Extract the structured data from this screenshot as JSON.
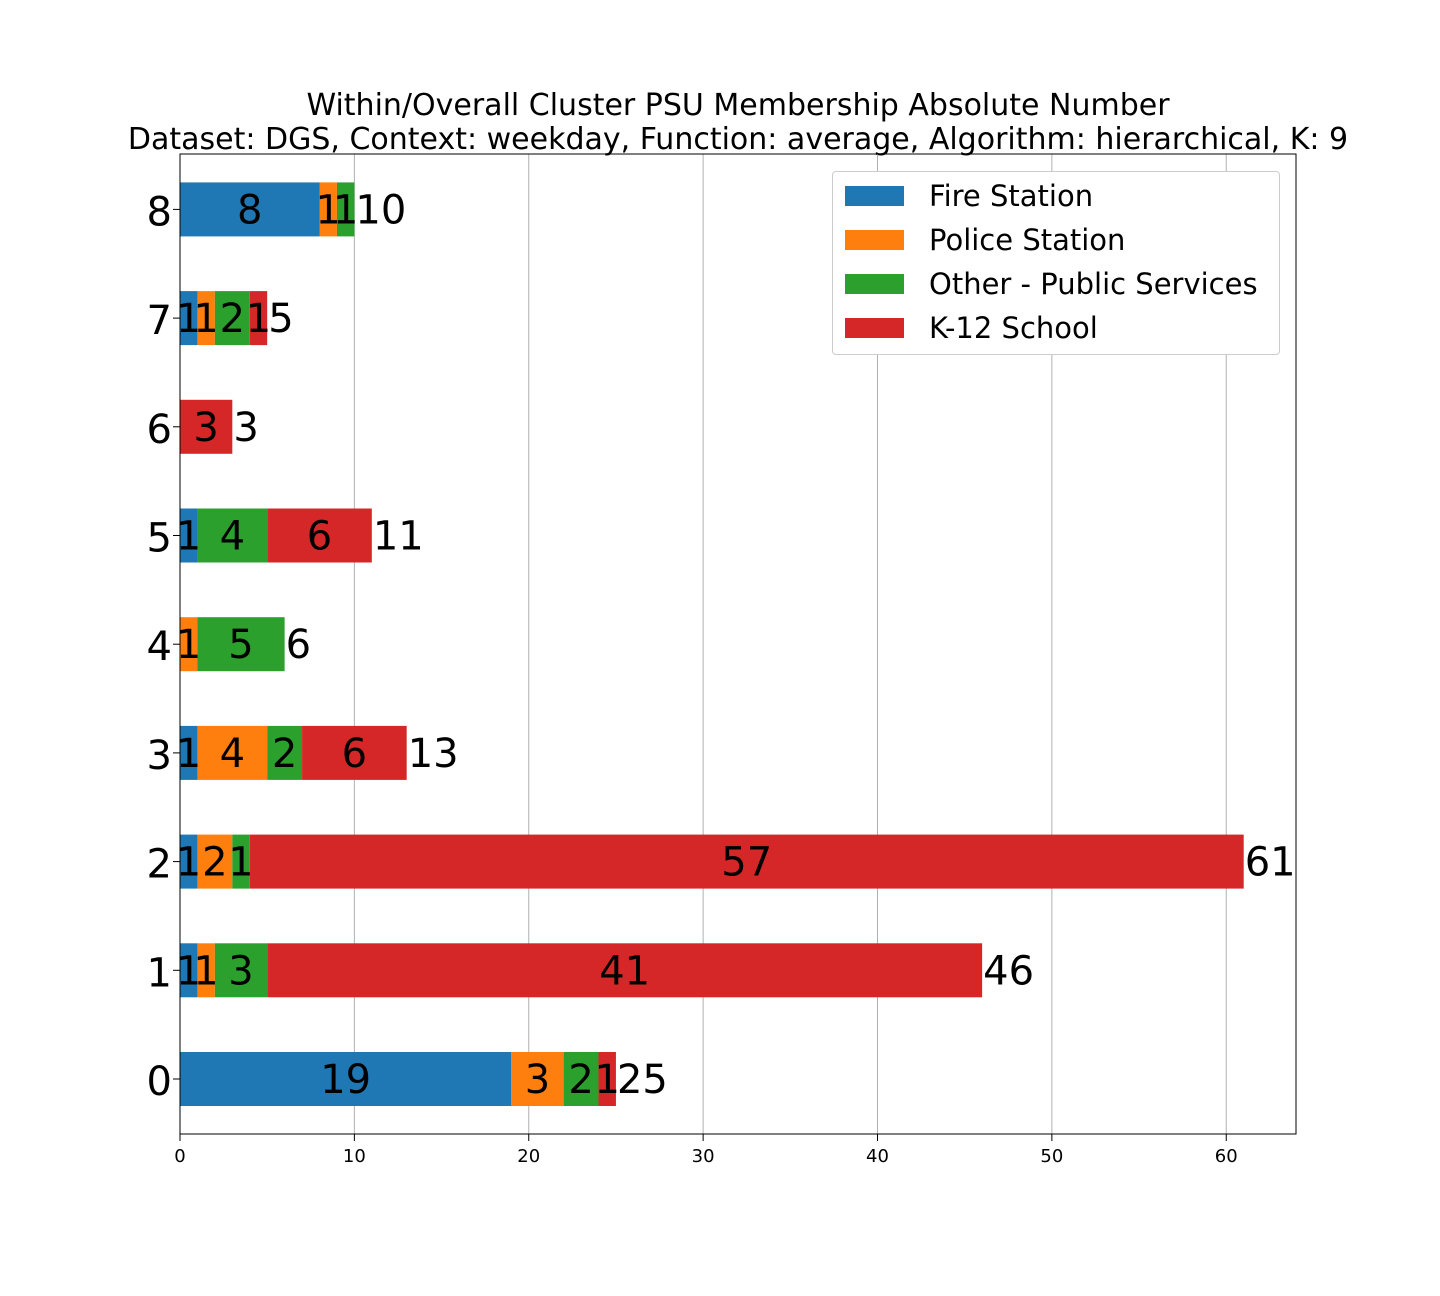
{
  "chart_data": {
    "type": "bar",
    "orientation": "horizontal",
    "stacked": true,
    "title": "Within/Overall Cluster PSU Membership Absolute Number",
    "subtitle": "Dataset: DGS, Context: weekday, Function: average, Algorithm: hierarchical, K: 9",
    "categories": [
      "0",
      "1",
      "2",
      "3",
      "4",
      "5",
      "6",
      "7",
      "8"
    ],
    "series": [
      {
        "name": "Fire Station",
        "color": "#1f77b4",
        "values": [
          19,
          1,
          1,
          1,
          0,
          1,
          0,
          1,
          8
        ]
      },
      {
        "name": "Police Station",
        "color": "#ff7f0e",
        "values": [
          3,
          1,
          2,
          4,
          1,
          0,
          0,
          1,
          1
        ]
      },
      {
        "name": "Other - Public Services",
        "color": "#2ca02c",
        "values": [
          2,
          3,
          1,
          2,
          5,
          4,
          0,
          2,
          1
        ]
      },
      {
        "name": "K-12 School",
        "color": "#d62728",
        "values": [
          1,
          41,
          57,
          6,
          0,
          6,
          3,
          1,
          0
        ]
      }
    ],
    "totals": [
      25,
      46,
      61,
      13,
      6,
      11,
      3,
      5,
      10
    ],
    "xlim": [
      0,
      64
    ],
    "xticks": [
      0,
      10,
      20,
      30,
      40,
      50,
      60
    ],
    "grid": "x",
    "legend_position": "top-right",
    "xlabel": "",
    "ylabel": ""
  }
}
